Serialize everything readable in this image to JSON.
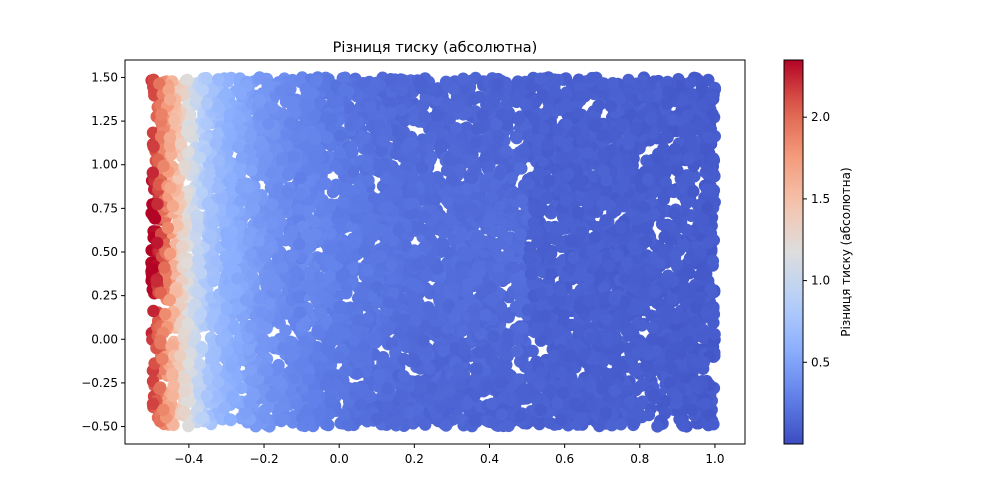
{
  "chart_data": {
    "type": "scatter",
    "title": "Різниця тиску (абсолютна)",
    "xlabel": "",
    "ylabel": "",
    "xlim": [
      -0.57,
      1.08
    ],
    "ylim": [
      -0.6,
      1.6
    ],
    "x_ticks": [
      -0.4,
      -0.2,
      0.0,
      0.2,
      0.4,
      0.6,
      0.8,
      1.0
    ],
    "x_tick_labels": [
      "−0.4",
      "−0.2",
      "0.0",
      "0.2",
      "0.4",
      "0.6",
      "0.8",
      "1.0"
    ],
    "y_ticks": [
      -0.5,
      -0.25,
      0.0,
      0.25,
      0.5,
      0.75,
      1.0,
      1.25,
      1.5
    ],
    "y_tick_labels": [
      "−0.50",
      "−0.25",
      "0.00",
      "0.25",
      "0.50",
      "0.75",
      "1.00",
      "1.25",
      "1.50"
    ],
    "domain_x": [
      -0.5,
      1.0
    ],
    "domain_y": [
      -0.5,
      1.5
    ],
    "colormap": "coolwarm",
    "colorbar": {
      "label": "Різниця тиску (абсолютна)",
      "range": [
        0.0,
        2.35
      ],
      "ticks": [
        0.5,
        1.0,
        1.5,
        2.0
      ],
      "tick_labels": [
        "0.5",
        "1.0",
        "1.5",
        "2.0"
      ]
    },
    "value_profile": {
      "x": [
        -0.5,
        -0.45,
        -0.4,
        -0.35,
        -0.3,
        -0.2,
        -0.1,
        0.0,
        0.1,
        0.2,
        0.4,
        0.6,
        0.8,
        1.0
      ],
      "value": [
        2.2,
        1.65,
        1.15,
        0.78,
        0.6,
        0.42,
        0.3,
        0.22,
        0.17,
        0.14,
        0.12,
        0.11,
        0.1,
        0.08
      ]
    },
    "grid": false
  }
}
